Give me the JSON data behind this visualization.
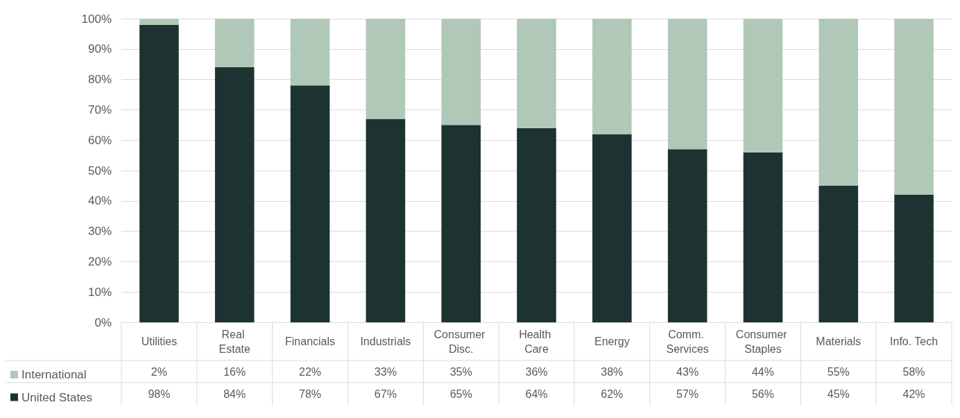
{
  "chart_data": {
    "type": "bar",
    "stacked": true,
    "categories": [
      "Utilities",
      "Real Estate",
      "Financials",
      "Industrials",
      "Consumer Disc.",
      "Health Care",
      "Energy",
      "Comm. Services",
      "Consumer Staples",
      "Materials",
      "Info. Tech"
    ],
    "series": [
      {
        "name": "United States",
        "color": "#1c3331",
        "values": [
          98,
          84,
          78,
          67,
          65,
          64,
          62,
          57,
          56,
          45,
          42
        ],
        "value_labels": [
          "98%",
          "84%",
          "78%",
          "67%",
          "65%",
          "64%",
          "62%",
          "57%",
          "56%",
          "45%",
          "42%"
        ]
      },
      {
        "name": "International",
        "color": "#b0c8b8",
        "values": [
          2,
          16,
          22,
          33,
          35,
          36,
          38,
          43,
          44,
          55,
          58
        ],
        "value_labels": [
          "2%",
          "16%",
          "22%",
          "33%",
          "35%",
          "36%",
          "38%",
          "43%",
          "44%",
          "55%",
          "58%"
        ]
      }
    ],
    "ylim": [
      0,
      100
    ],
    "yticks": [
      {
        "value": 0,
        "label": "0%"
      },
      {
        "value": 10,
        "label": "10%"
      },
      {
        "value": 20,
        "label": "20%"
      },
      {
        "value": 30,
        "label": "30%"
      },
      {
        "value": 40,
        "label": "40%"
      },
      {
        "value": 50,
        "label": "50%"
      },
      {
        "value": 60,
        "label": "60%"
      },
      {
        "value": 70,
        "label": "70%"
      },
      {
        "value": 80,
        "label": "80%"
      },
      {
        "value": 90,
        "label": "90%"
      },
      {
        "value": 100,
        "label": "100%"
      }
    ],
    "grid": "y",
    "legend": "bottom left"
  }
}
